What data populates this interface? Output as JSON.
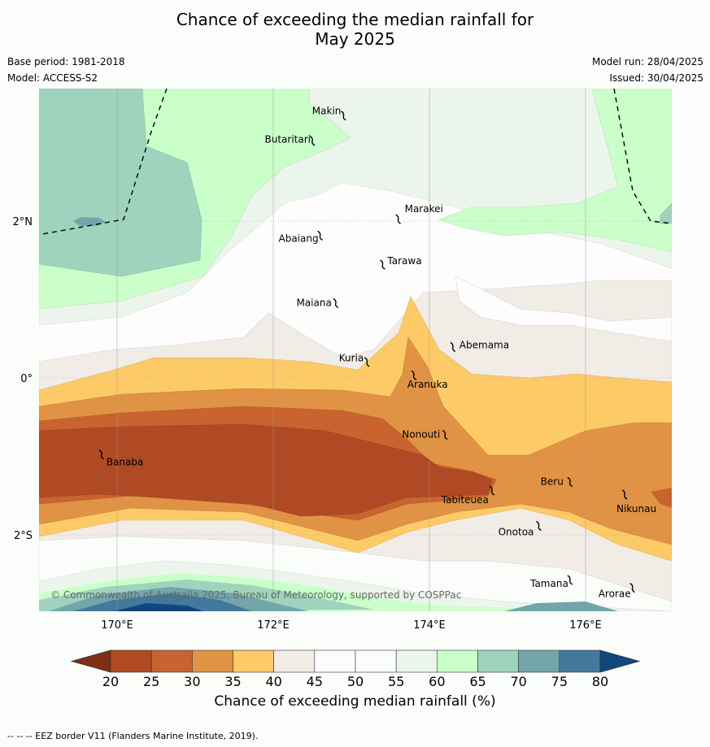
{
  "title_line1": "Chance of exceeding the median rainfall for",
  "title_line2": "May 2025",
  "meta_left": {
    "base_period": "Base period: 1981-2018",
    "model": "Model: ACCESS-S2"
  },
  "meta_right": {
    "model_run": "Model run: 28/04/2025",
    "issued": "Issued: 30/04/2025"
  },
  "axes": {
    "x_ticks": [
      "170°E",
      "172°E",
      "174°E",
      "176°E"
    ],
    "y_ticks": [
      "2°N",
      "0°",
      "2°S"
    ]
  },
  "places": [
    {
      "name": "Makin",
      "lon": 172.9,
      "lat": 3.35
    },
    {
      "name": "Butaritari",
      "lon": 172.5,
      "lat": 3.03
    },
    {
      "name": "Marakei",
      "lon": 173.6,
      "lat": 2.03
    },
    {
      "name": "Abaiang",
      "lon": 172.6,
      "lat": 1.82
    },
    {
      "name": "Tarawa",
      "lon": 173.4,
      "lat": 1.45
    },
    {
      "name": "Maiana",
      "lon": 172.8,
      "lat": 0.96
    },
    {
      "name": "Abemama",
      "lon": 174.3,
      "lat": 0.4
    },
    {
      "name": "Kuria",
      "lon": 173.2,
      "lat": 0.21
    },
    {
      "name": "Aranuka",
      "lon": 173.8,
      "lat": 0.04
    },
    {
      "name": "Nonouti",
      "lon": 174.2,
      "lat": -0.72
    },
    {
      "name": "Banaba",
      "lon": 169.8,
      "lat": -0.97
    },
    {
      "name": "Tabiteuea",
      "lon": 174.8,
      "lat": -1.43
    },
    {
      "name": "Beru",
      "lon": 175.8,
      "lat": -1.32
    },
    {
      "name": "Nikunau",
      "lon": 176.5,
      "lat": -1.48
    },
    {
      "name": "Onotoa",
      "lon": 175.4,
      "lat": -1.88
    },
    {
      "name": "Tamana",
      "lon": 175.8,
      "lat": -2.57
    },
    {
      "name": "Arorae",
      "lon": 176.6,
      "lat": -2.67
    }
  ],
  "copyright": "© Commonwealth of Australia 2025, Bureau of Meteorology, supported by COSPPac",
  "colorbar": {
    "title": "Chance of exceeding median rainfall (%)",
    "labels": [
      "20",
      "25",
      "30",
      "35",
      "40",
      "45",
      "50",
      "55",
      "60",
      "65",
      "70",
      "75",
      "80"
    ],
    "under_color": "#7f2f14",
    "over_color": "#12467e",
    "colors": [
      "#b04a25",
      "#c96330",
      "#e09344",
      "#fdca68",
      "#f2ece7",
      "#fdfdfd",
      "#fbfdfb",
      "#ecf5ec",
      "#caffca",
      "#9fd3bd",
      "#72a6a9",
      "#43799c"
    ]
  },
  "footnote": "--  --  -- EEZ border V11 (Flanders Marine Institute, 2019)."
}
